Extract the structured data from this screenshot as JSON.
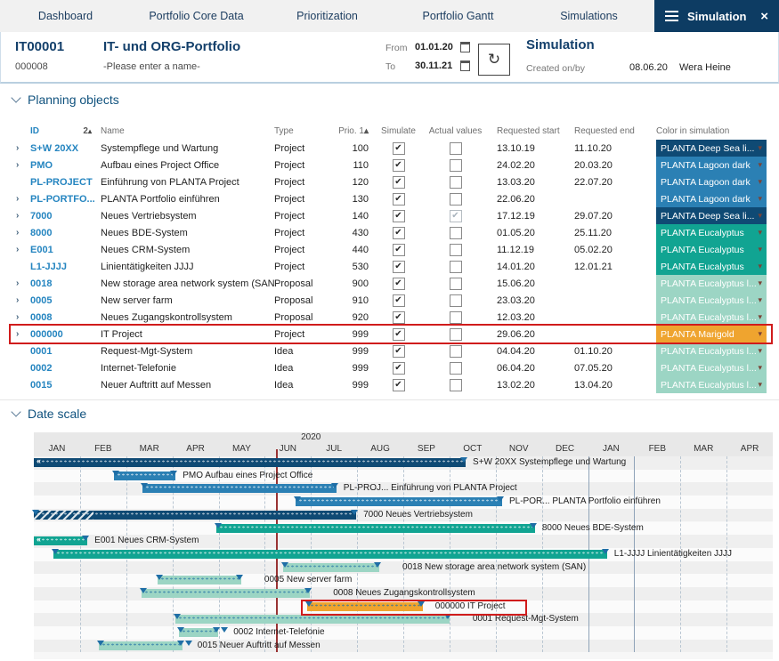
{
  "nav": {
    "items": [
      "Dashboard",
      "Portfolio Core Data",
      "Prioritization",
      "Portfolio Gantt",
      "Simulations"
    ],
    "active_tab": "Simulation"
  },
  "header": {
    "portfolio_id": "IT00001",
    "portfolio_number": "000008",
    "portfolio_title": "IT- und ORG-Portfolio",
    "name_placeholder": "-Please enter a name-",
    "from_label": "From",
    "from_value": "01.01.20",
    "to_label": "To",
    "to_value": "30.11.21",
    "panel_title": "Simulation",
    "created_label": "Created on/by",
    "created_date": "08.06.20",
    "created_by": "Wera Heine"
  },
  "sections": {
    "planning": "Planning objects",
    "datescale": "Date scale"
  },
  "icons": {
    "sort_asc": "▴",
    "dropdown": "▾",
    "expander": "›",
    "clipped": "«",
    "close": "×",
    "refresh": "↻"
  },
  "colors": {
    "deepsea": "#0F4A74",
    "lagoon": "#2B80B4",
    "eucalyptus": "#11A492",
    "eucalight": "#9CD5C4",
    "marigold": "#EFA42F",
    "accent_navy": "#0D3C63",
    "highlight_red": "#D01C1C",
    "today_line": "#993333"
  },
  "color_labels": {
    "deepsea": "PLANTA Deep Sea li...",
    "lagoon": "PLANTA Lagoon dark",
    "eucalyptus": "PLANTA Eucalyptus",
    "eucalight": "PLANTA Eucalyptus l...",
    "marigold": "PLANTA Marigold"
  },
  "table": {
    "headers": {
      "id": "ID",
      "id_sort": "2",
      "name": "Name",
      "type": "Type",
      "prio": "Prio. 1",
      "simulate": "Simulate",
      "actual": "Actual values",
      "req_start": "Requested start",
      "req_end": "Requested end",
      "color": "Color in simulation"
    },
    "rows": [
      {
        "expand": true,
        "id": "S+W 20XX",
        "name": "Systempflege und Wartung",
        "type": "Project",
        "prio": "100",
        "simulate": true,
        "actual": "off",
        "req_start": "13.10.19",
        "req_end": "11.10.20",
        "color": "deepsea",
        "highlight": false
      },
      {
        "expand": true,
        "id": "PMO",
        "name": "Aufbau eines Project Office",
        "type": "Project",
        "prio": "110",
        "simulate": true,
        "actual": "off",
        "req_start": "24.02.20",
        "req_end": "20.03.20",
        "color": "lagoon",
        "highlight": false
      },
      {
        "expand": false,
        "id": "PL-PROJECT",
        "name": "Einführung von PLANTA Project",
        "type": "Project",
        "prio": "120",
        "simulate": true,
        "actual": "off",
        "req_start": "13.03.20",
        "req_end": "22.07.20",
        "color": "lagoon",
        "highlight": false
      },
      {
        "expand": true,
        "id": "PL-PORTFO...",
        "name": "PLANTA Portfolio einführen",
        "type": "Project",
        "prio": "130",
        "simulate": true,
        "actual": "off",
        "req_start": "22.06.20",
        "req_end": "",
        "color": "lagoon",
        "highlight": false
      },
      {
        "expand": true,
        "id": "7000",
        "name": "Neues Vertriebsystem",
        "type": "Project",
        "prio": "140",
        "simulate": true,
        "actual": "gray",
        "req_start": "17.12.19",
        "req_end": "29.07.20",
        "color": "deepsea",
        "highlight": false
      },
      {
        "expand": true,
        "id": "8000",
        "name": "Neues BDE-System",
        "type": "Project",
        "prio": "430",
        "simulate": true,
        "actual": "off",
        "req_start": "01.05.20",
        "req_end": "25.11.20",
        "color": "eucalyptus",
        "highlight": false
      },
      {
        "expand": true,
        "id": "E001",
        "name": "Neues CRM-System",
        "type": "Project",
        "prio": "440",
        "simulate": true,
        "actual": "off",
        "req_start": "11.12.19",
        "req_end": "05.02.20",
        "color": "eucalyptus",
        "highlight": false
      },
      {
        "expand": false,
        "id": "L1-JJJJ",
        "name": "Linientätigkeiten JJJJ",
        "type": "Project",
        "prio": "530",
        "simulate": true,
        "actual": "off",
        "req_start": "14.01.20",
        "req_end": "12.01.21",
        "color": "eucalyptus",
        "highlight": false
      },
      {
        "expand": true,
        "id": "0018",
        "name": "New storage area network system (SAN)",
        "type": "Proposal",
        "prio": "900",
        "simulate": true,
        "actual": "off",
        "req_start": "15.06.20",
        "req_end": "",
        "color": "eucalight",
        "highlight": false
      },
      {
        "expand": true,
        "id": "0005",
        "name": "New server farm",
        "type": "Proposal",
        "prio": "910",
        "simulate": true,
        "actual": "off",
        "req_start": "23.03.20",
        "req_end": "",
        "color": "eucalight",
        "highlight": false
      },
      {
        "expand": true,
        "id": "0008",
        "name": "Neues Zugangskontrollsystem",
        "type": "Proposal",
        "prio": "920",
        "simulate": true,
        "actual": "off",
        "req_start": "12.03.20",
        "req_end": "",
        "color": "eucalight",
        "highlight": false
      },
      {
        "expand": true,
        "id": "000000",
        "name": "IT Project",
        "type": "Project",
        "prio": "999",
        "simulate": true,
        "actual": "off",
        "req_start": "29.06.20",
        "req_end": "",
        "color": "marigold",
        "highlight": true
      },
      {
        "expand": false,
        "id": "0001",
        "name": "Request-Mgt-System",
        "type": "Idea",
        "prio": "999",
        "simulate": true,
        "actual": "off",
        "req_start": "04.04.20",
        "req_end": "01.10.20",
        "color": "eucalight",
        "highlight": false
      },
      {
        "expand": false,
        "id": "0002",
        "name": "Internet-Telefonie",
        "type": "Idea",
        "prio": "999",
        "simulate": true,
        "actual": "off",
        "req_start": "06.04.20",
        "req_end": "07.05.20",
        "color": "eucalight",
        "highlight": false
      },
      {
        "expand": false,
        "id": "0015",
        "name": "Neuer Auftritt auf Messen",
        "type": "Idea",
        "prio": "999",
        "simulate": true,
        "actual": "off",
        "req_start": "13.02.20",
        "req_end": "13.04.20",
        "color": "eucalight",
        "highlight": false
      }
    ]
  },
  "gantt": {
    "year_label": "2020",
    "months": [
      "JAN",
      "FEB",
      "MAR",
      "APR",
      "MAY",
      "JUN",
      "JUL",
      "AUG",
      "SEP",
      "OCT",
      "NOV",
      "DEC",
      "JAN",
      "FEB",
      "MAR",
      "APR"
    ],
    "today_m": 5.24,
    "solid_lines_m": [
      12,
      13
    ],
    "rows": [
      {
        "label": "S+W 20XX Systempflege und Wartung",
        "color": "deepsea",
        "start_m": 0,
        "end_m": 9.35,
        "clipped": true,
        "hatch_to_m": null,
        "marker_m": null,
        "boxed": false
      },
      {
        "label": "PMO Aufbau eines Project Office",
        "color": "lagoon",
        "start_m": 1.73,
        "end_m": 3.07,
        "clipped": false,
        "hatch_to_m": null,
        "marker_m": null,
        "boxed": false
      },
      {
        "label": "PL-PROJ... Einführung von PLANTA Project",
        "color": "lagoon",
        "start_m": 2.35,
        "end_m": 6.55,
        "clipped": false,
        "hatch_to_m": null,
        "marker_m": null,
        "boxed": false
      },
      {
        "label": "PL-POR... PLANTA Portfolio einführen",
        "color": "lagoon",
        "start_m": 5.67,
        "end_m": 10.14,
        "clipped": false,
        "hatch_to_m": null,
        "marker_m": null,
        "boxed": false
      },
      {
        "label": "7000 Neues Vertriebsystem",
        "color": "deepsea",
        "start_m": 0,
        "end_m": 6.98,
        "clipped": false,
        "hatch_to_m": 1.29,
        "marker_m": null,
        "boxed": false
      },
      {
        "label": "8000 Neues BDE-System",
        "color": "eucalyptus",
        "start_m": 3.95,
        "end_m": 10.85,
        "clipped": false,
        "hatch_to_m": null,
        "marker_m": null,
        "boxed": false
      },
      {
        "label": "E001 Neues CRM-System",
        "color": "eucalyptus",
        "start_m": 0,
        "end_m": 1.16,
        "clipped": true,
        "hatch_to_m": null,
        "marker_m": null,
        "boxed": false
      },
      {
        "label": "L1-JJJJ Linientätigkeiten JJJJ",
        "color": "eucalyptus",
        "start_m": 0.42,
        "end_m": 12.41,
        "clipped": false,
        "hatch_to_m": null,
        "marker_m": null,
        "boxed": false
      },
      {
        "label": "0018 New storage area network system (SAN)",
        "color": "eucalight",
        "start_m": 5.4,
        "end_m": 7.48,
        "clipped": false,
        "hatch_to_m": null,
        "marker_m": null,
        "boxed": false
      },
      {
        "label": "0005 New server farm",
        "color": "eucalight",
        "start_m": 2.68,
        "end_m": 4.49,
        "clipped": false,
        "hatch_to_m": null,
        "marker_m": null,
        "boxed": false
      },
      {
        "label": "0008 Neues Zugangskontrollsystem",
        "color": "eucalight",
        "start_m": 2.33,
        "end_m": 5.98,
        "clipped": false,
        "hatch_to_m": null,
        "marker_m": null,
        "boxed": false
      },
      {
        "label": "000000 IT Project",
        "color": "marigold",
        "start_m": 5.92,
        "end_m": 8.42,
        "clipped": false,
        "hatch_to_m": null,
        "marker_m": null,
        "boxed": true
      },
      {
        "label": "0001 Request-Mgt-System",
        "color": "eucalight",
        "start_m": 3.06,
        "end_m": 9.0,
        "clipped": false,
        "hatch_to_m": null,
        "marker_m": null,
        "boxed": false
      },
      {
        "label": "0002 Internet-Telefonie",
        "color": "eucalight",
        "start_m": 3.14,
        "end_m": 3.99,
        "clipped": false,
        "hatch_to_m": null,
        "marker_m": 4.13,
        "boxed": false
      },
      {
        "label": "0015 Neuer Auftritt auf Messen",
        "color": "eucalight",
        "start_m": 1.41,
        "end_m": 3.22,
        "clipped": false,
        "hatch_to_m": null,
        "marker_m": 3.35,
        "boxed": false
      }
    ],
    "highlight_box": {
      "row": 11,
      "start_m": 5.78,
      "end_m": 10.6
    }
  }
}
